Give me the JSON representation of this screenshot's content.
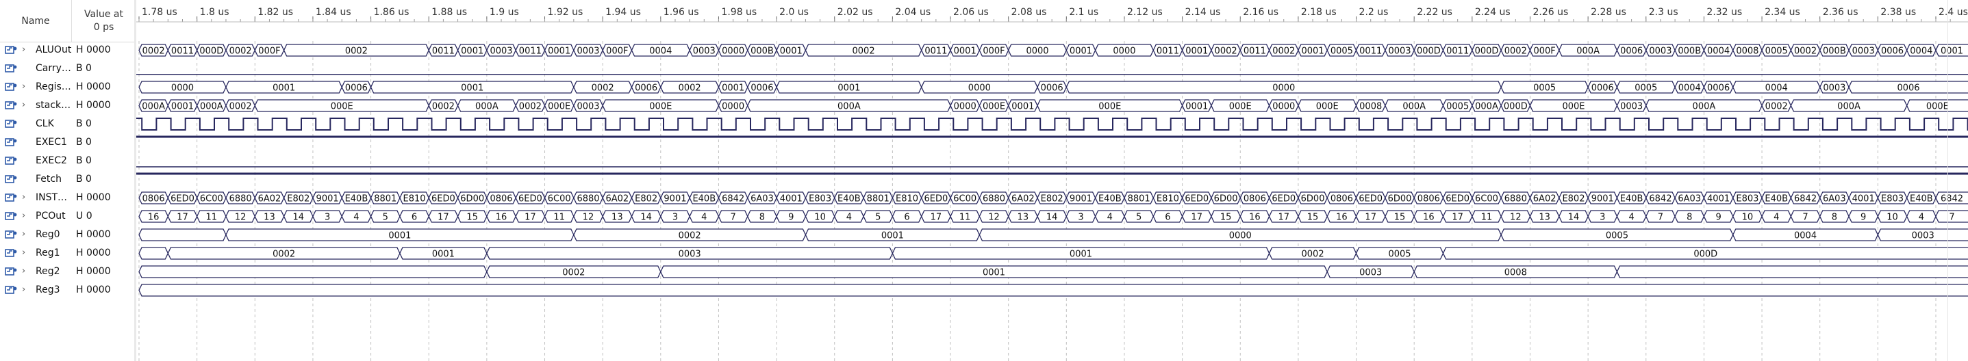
{
  "columns": {
    "name_header": "Name",
    "value_header_line1": "Value at",
    "value_header_line2": "0 ps"
  },
  "colors": {
    "waveform": "#27275e",
    "ruler_text": "#333333",
    "grid": "#c0c0c0",
    "icon_blue": "#2e5aa8"
  },
  "timeline": {
    "start_us": 1.78,
    "end_us": 2.4,
    "ticks": [
      "1.78 us",
      "1.8 us",
      "1.82 us",
      "1.84 us",
      "1.86 us",
      "1.88 us",
      "1.9 us",
      "1.92 us",
      "1.94 us",
      "1.96 us",
      "1.98 us",
      "2.0 us",
      "2.02 us",
      "2.04 us",
      "2.06 us",
      "2.08 us",
      "2.1 us",
      "2.12 us",
      "2.14 us",
      "2.16 us",
      "2.18 us",
      "2.2 us",
      "2.22 us",
      "2.24 us",
      "2.26 us",
      "2.28 us",
      "2.3 us",
      "2.32 us",
      "2.34 us",
      "2.36 us",
      "2.38 us",
      "2.4 us"
    ],
    "tick_values_us": [
      1.78,
      1.8,
      1.82,
      1.84,
      1.86,
      1.88,
      1.9,
      1.92,
      1.94,
      1.96,
      1.98,
      2.0,
      2.02,
      2.04,
      2.06,
      2.08,
      2.1,
      2.12,
      2.14,
      2.16,
      2.18,
      2.2,
      2.22,
      2.24,
      2.26,
      2.28,
      2.3,
      2.32,
      2.34,
      2.36,
      2.38,
      2.4
    ]
  },
  "signals": [
    {
      "name": "ALUOut",
      "value": "H 0000",
      "expandable": true,
      "kind": "bus",
      "segments": [
        [
          1.78,
          "0002"
        ],
        [
          1.79,
          "0011"
        ],
        [
          1.8,
          "000D"
        ],
        [
          1.81,
          "0002"
        ],
        [
          1.82,
          "000F"
        ],
        [
          1.83,
          "0002"
        ],
        [
          1.88,
          "0011"
        ],
        [
          1.89,
          "0001"
        ],
        [
          1.9,
          "0003"
        ],
        [
          1.91,
          "0011"
        ],
        [
          1.92,
          "0001"
        ],
        [
          1.93,
          "0003"
        ],
        [
          1.94,
          "000F"
        ],
        [
          1.95,
          "0004"
        ],
        [
          1.97,
          "0003"
        ],
        [
          1.98,
          "0000"
        ],
        [
          1.99,
          "000B"
        ],
        [
          2.0,
          "0001"
        ],
        [
          2.01,
          "0002"
        ],
        [
          2.05,
          "0011"
        ],
        [
          2.06,
          "0001"
        ],
        [
          2.07,
          "000F"
        ],
        [
          2.08,
          "0000"
        ],
        [
          2.1,
          "0001"
        ],
        [
          2.11,
          "0000"
        ],
        [
          2.13,
          "0011"
        ],
        [
          2.14,
          "0001"
        ],
        [
          2.15,
          "0002"
        ],
        [
          2.16,
          "0011"
        ],
        [
          2.17,
          "0002"
        ],
        [
          2.18,
          "0001"
        ],
        [
          2.19,
          "0005"
        ],
        [
          2.2,
          "0011"
        ],
        [
          2.21,
          "0003"
        ],
        [
          2.22,
          "000D"
        ],
        [
          2.23,
          "0011"
        ],
        [
          2.24,
          "000D"
        ],
        [
          2.25,
          "0002"
        ],
        [
          2.26,
          "000F"
        ],
        [
          2.27,
          "000A"
        ],
        [
          2.29,
          "0006"
        ],
        [
          2.3,
          "0003"
        ],
        [
          2.31,
          "000B"
        ],
        [
          2.32,
          "0004"
        ],
        [
          2.33,
          "0008"
        ],
        [
          2.34,
          "0005"
        ],
        [
          2.35,
          "0002"
        ],
        [
          2.36,
          "000B"
        ],
        [
          2.37,
          "0003"
        ],
        [
          2.38,
          "0006"
        ],
        [
          2.39,
          "0004"
        ],
        [
          2.4,
          "0001"
        ]
      ]
    },
    {
      "name": "CarryOut",
      "display_name": "CarryQ...",
      "value": "B 0",
      "expandable": false,
      "kind": "bit",
      "level": 0
    },
    {
      "name": "Registers",
      "display_name": "Registe...",
      "value": "H 0000",
      "expandable": true,
      "kind": "bus",
      "segments": [
        [
          1.78,
          "0000"
        ],
        [
          1.81,
          "0001"
        ],
        [
          1.85,
          "0006"
        ],
        [
          1.86,
          "0001"
        ],
        [
          1.93,
          "0002"
        ],
        [
          1.95,
          "0006"
        ],
        [
          1.96,
          "0002"
        ],
        [
          1.98,
          "0001"
        ],
        [
          1.99,
          "0006"
        ],
        [
          2.0,
          "0001"
        ],
        [
          2.05,
          "0000"
        ],
        [
          2.09,
          "0006"
        ],
        [
          2.1,
          "0000"
        ],
        [
          2.25,
          "0005"
        ],
        [
          2.28,
          "0006"
        ],
        [
          2.29,
          "0005"
        ],
        [
          2.31,
          "0004"
        ],
        [
          2.32,
          "0006"
        ],
        [
          2.33,
          "0004"
        ],
        [
          2.36,
          "0003"
        ],
        [
          2.37,
          "0006"
        ]
      ]
    },
    {
      "name": "stackOut",
      "value": "H 0000",
      "expandable": true,
      "kind": "bus",
      "segments": [
        [
          1.78,
          "000A"
        ],
        [
          1.79,
          "0001"
        ],
        [
          1.8,
          "000A"
        ],
        [
          1.81,
          "0002"
        ],
        [
          1.82,
          "000E"
        ],
        [
          1.88,
          "0002"
        ],
        [
          1.89,
          "000A"
        ],
        [
          1.91,
          "0002"
        ],
        [
          1.92,
          "000E"
        ],
        [
          1.93,
          "0003"
        ],
        [
          1.94,
          "000E"
        ],
        [
          1.98,
          "0000"
        ],
        [
          1.99,
          "000A"
        ],
        [
          2.06,
          "0000"
        ],
        [
          2.07,
          "000E"
        ],
        [
          2.08,
          "0001"
        ],
        [
          2.09,
          "000E"
        ],
        [
          2.14,
          "0001"
        ],
        [
          2.15,
          "000E"
        ],
        [
          2.17,
          "0000"
        ],
        [
          2.18,
          "000E"
        ],
        [
          2.2,
          "0008"
        ],
        [
          2.21,
          "000A"
        ],
        [
          2.23,
          "0005"
        ],
        [
          2.24,
          "000A"
        ],
        [
          2.25,
          "000D"
        ],
        [
          2.26,
          "000E"
        ],
        [
          2.29,
          "0003"
        ],
        [
          2.3,
          "000A"
        ],
        [
          2.34,
          "0002"
        ],
        [
          2.35,
          "000A"
        ],
        [
          2.39,
          "000E"
        ]
      ]
    },
    {
      "name": "CLK",
      "value": "B 0",
      "expandable": false,
      "kind": "clock",
      "period_us": 0.01
    },
    {
      "name": "EXEC1",
      "value": "B 0",
      "expandable": false,
      "kind": "bit",
      "level": 1
    },
    {
      "name": "EXEC2",
      "value": "B 0",
      "expandable": false,
      "kind": "bit",
      "level": 0
    },
    {
      "name": "Fetch",
      "value": "B 0",
      "expandable": false,
      "kind": "bit",
      "level": 1
    },
    {
      "name": "INSTRout",
      "display_name": "INSTR_...",
      "value": "H 0000",
      "expandable": true,
      "kind": "bus",
      "segments": [
        [
          1.78,
          "0806"
        ],
        [
          1.79,
          "6ED0"
        ],
        [
          1.8,
          "6C00"
        ],
        [
          1.81,
          "6880"
        ],
        [
          1.82,
          "6A02"
        ],
        [
          1.83,
          "E802"
        ],
        [
          1.84,
          "9001"
        ],
        [
          1.85,
          "E40B"
        ],
        [
          1.86,
          "8801"
        ],
        [
          1.87,
          "E810"
        ],
        [
          1.88,
          "6ED0"
        ],
        [
          1.89,
          "6D00"
        ],
        [
          1.9,
          "0806"
        ],
        [
          1.91,
          "6ED0"
        ],
        [
          1.92,
          "6C00"
        ],
        [
          1.93,
          "6880"
        ],
        [
          1.94,
          "6A02"
        ],
        [
          1.95,
          "E802"
        ],
        [
          1.96,
          "9001"
        ],
        [
          1.97,
          "E40B"
        ],
        [
          1.98,
          "6842"
        ],
        [
          1.99,
          "6A03"
        ],
        [
          2.0,
          "4001"
        ],
        [
          2.01,
          "E803"
        ],
        [
          2.02,
          "E40B"
        ],
        [
          2.03,
          "8801"
        ],
        [
          2.04,
          "E810"
        ],
        [
          2.05,
          "6ED0"
        ],
        [
          2.06,
          "6C00"
        ],
        [
          2.07,
          "6880"
        ],
        [
          2.08,
          "6A02"
        ],
        [
          2.09,
          "E802"
        ],
        [
          2.1,
          "9001"
        ],
        [
          2.11,
          "E40B"
        ],
        [
          2.12,
          "8801"
        ],
        [
          2.13,
          "E810"
        ],
        [
          2.14,
          "6ED0"
        ],
        [
          2.15,
          "6D00"
        ],
        [
          2.16,
          "0806"
        ],
        [
          2.17,
          "6ED0"
        ],
        [
          2.18,
          "6D00"
        ],
        [
          2.19,
          "0806"
        ],
        [
          2.2,
          "6ED0"
        ],
        [
          2.21,
          "6D00"
        ],
        [
          2.22,
          "0806"
        ],
        [
          2.23,
          "6ED0"
        ],
        [
          2.24,
          "6C00"
        ],
        [
          2.25,
          "6880"
        ],
        [
          2.26,
          "6A02"
        ],
        [
          2.27,
          "E802"
        ],
        [
          2.28,
          "9001"
        ],
        [
          2.29,
          "E40B"
        ],
        [
          2.3,
          "6842"
        ],
        [
          2.31,
          "6A03"
        ],
        [
          2.32,
          "4001"
        ],
        [
          2.33,
          "E803"
        ],
        [
          2.34,
          "E40B"
        ],
        [
          2.35,
          "6842"
        ],
        [
          2.36,
          "6A03"
        ],
        [
          2.37,
          "4001"
        ],
        [
          2.38,
          "E803"
        ],
        [
          2.39,
          "E40B"
        ],
        [
          2.4,
          "6842"
        ]
      ]
    },
    {
      "name": "PCOut",
      "value": "U 0",
      "expandable": true,
      "kind": "bus",
      "segments": [
        [
          1.78,
          "16"
        ],
        [
          1.79,
          "17"
        ],
        [
          1.8,
          "11"
        ],
        [
          1.81,
          "12"
        ],
        [
          1.82,
          "13"
        ],
        [
          1.83,
          "14"
        ],
        [
          1.84,
          "3"
        ],
        [
          1.85,
          "4"
        ],
        [
          1.86,
          "5"
        ],
        [
          1.87,
          "6"
        ],
        [
          1.88,
          "17"
        ],
        [
          1.89,
          "15"
        ],
        [
          1.9,
          "16"
        ],
        [
          1.91,
          "17"
        ],
        [
          1.92,
          "11"
        ],
        [
          1.93,
          "12"
        ],
        [
          1.94,
          "13"
        ],
        [
          1.95,
          "14"
        ],
        [
          1.96,
          "3"
        ],
        [
          1.97,
          "4"
        ],
        [
          1.98,
          "7"
        ],
        [
          1.99,
          "8"
        ],
        [
          2.0,
          "9"
        ],
        [
          2.01,
          "10"
        ],
        [
          2.02,
          "4"
        ],
        [
          2.03,
          "5"
        ],
        [
          2.04,
          "6"
        ],
        [
          2.05,
          "17"
        ],
        [
          2.06,
          "11"
        ],
        [
          2.07,
          "12"
        ],
        [
          2.08,
          "13"
        ],
        [
          2.09,
          "14"
        ],
        [
          2.1,
          "3"
        ],
        [
          2.11,
          "4"
        ],
        [
          2.12,
          "5"
        ],
        [
          2.13,
          "6"
        ],
        [
          2.14,
          "17"
        ],
        [
          2.15,
          "15"
        ],
        [
          2.16,
          "16"
        ],
        [
          2.17,
          "17"
        ],
        [
          2.18,
          "15"
        ],
        [
          2.19,
          "16"
        ],
        [
          2.2,
          "17"
        ],
        [
          2.21,
          "15"
        ],
        [
          2.22,
          "16"
        ],
        [
          2.23,
          "17"
        ],
        [
          2.24,
          "11"
        ],
        [
          2.25,
          "12"
        ],
        [
          2.26,
          "13"
        ],
        [
          2.27,
          "14"
        ],
        [
          2.28,
          "3"
        ],
        [
          2.29,
          "4"
        ],
        [
          2.3,
          "7"
        ],
        [
          2.31,
          "8"
        ],
        [
          2.32,
          "9"
        ],
        [
          2.33,
          "10"
        ],
        [
          2.34,
          "4"
        ],
        [
          2.35,
          "7"
        ],
        [
          2.36,
          "8"
        ],
        [
          2.37,
          "9"
        ],
        [
          2.38,
          "10"
        ],
        [
          2.39,
          "4"
        ],
        [
          2.4,
          "7"
        ]
      ]
    },
    {
      "name": "Reg0",
      "value": "H 0000",
      "expandable": true,
      "kind": "bus",
      "segments": [
        [
          1.78,
          ""
        ],
        [
          1.81,
          "0001"
        ],
        [
          1.93,
          "0002"
        ],
        [
          2.01,
          "0001"
        ],
        [
          2.07,
          "0000"
        ],
        [
          2.25,
          "0005"
        ],
        [
          2.33,
          "0004"
        ],
        [
          2.38,
          "0003"
        ]
      ]
    },
    {
      "name": "Reg1",
      "value": "H 0000",
      "expandable": true,
      "kind": "bus",
      "segments": [
        [
          1.78,
          ""
        ],
        [
          1.79,
          "0002"
        ],
        [
          1.87,
          "0001"
        ],
        [
          1.9,
          "0003"
        ],
        [
          2.04,
          "0001"
        ],
        [
          2.17,
          "0002"
        ],
        [
          2.2,
          "0005"
        ],
        [
          2.23,
          "000D"
        ]
      ]
    },
    {
      "name": "Reg2",
      "value": "H 0000",
      "expandable": true,
      "kind": "bus",
      "segments": [
        [
          1.78,
          ""
        ],
        [
          1.9,
          "0002"
        ],
        [
          1.96,
          "0001"
        ],
        [
          2.19,
          "0003"
        ],
        [
          2.22,
          "0008"
        ],
        [
          2.29,
          ""
        ]
      ]
    },
    {
      "name": "Reg3",
      "value": "H 0000",
      "expandable": true,
      "kind": "bus",
      "segments": [
        [
          1.78,
          ""
        ]
      ]
    }
  ]
}
